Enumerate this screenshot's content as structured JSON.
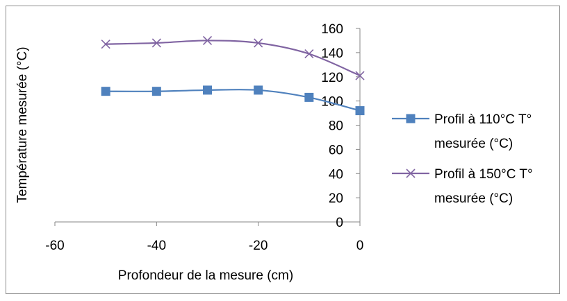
{
  "chart_data": {
    "type": "line",
    "title": "",
    "xlabel": "Profondeur de la mesure (cm)",
    "ylabel": "Température mesurée (°C)",
    "xlim": [
      -60,
      0
    ],
    "ylim": [
      0,
      160
    ],
    "x_ticks": [
      -60,
      -40,
      -20,
      0
    ],
    "y_ticks": [
      0,
      20,
      40,
      60,
      80,
      100,
      120,
      140,
      160
    ],
    "x_tick_labels": [
      "-60",
      "-40",
      "-20",
      "0"
    ],
    "y_tick_labels": [
      "0",
      "20",
      "40",
      "60",
      "80",
      "100",
      "120",
      "140",
      "160"
    ],
    "grid": false,
    "legend_position": "right",
    "x": [
      -50,
      -40,
      -30,
      -20,
      -10,
      0
    ],
    "series": [
      {
        "name_lines": [
          "Profil à 110°C T°",
          "mesurée (°C)"
        ],
        "values": [
          108,
          108,
          109,
          109,
          103,
          92
        ],
        "color": "#4f81bd",
        "marker": "square"
      },
      {
        "name_lines": [
          "Profil à 150°C T°",
          "mesurée (°C)"
        ],
        "values": [
          147,
          148,
          150,
          148,
          139,
          121
        ],
        "color": "#8064a2",
        "marker": "x"
      }
    ]
  }
}
